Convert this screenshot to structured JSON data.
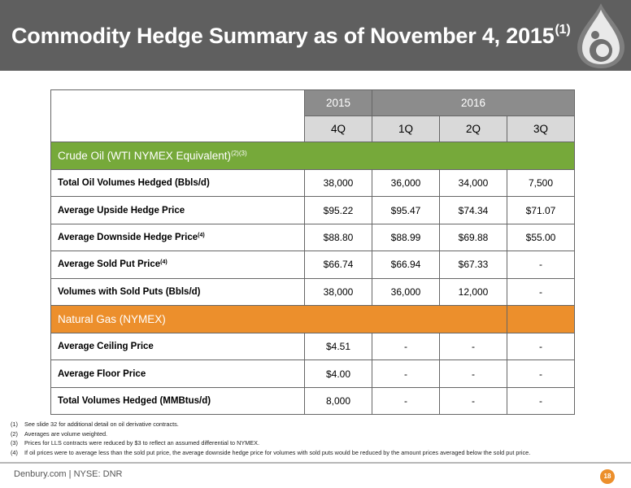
{
  "header": {
    "title": "Commodity Hedge Summary as of November 4, 2015",
    "title_sup": "(1)",
    "bg_color": "#5f5f5f",
    "logo_icon": "oil-drop-logo-icon"
  },
  "table": {
    "years": [
      "2015",
      "2016"
    ],
    "quarters": [
      "4Q",
      "1Q",
      "2Q",
      "3Q"
    ],
    "oil_section": {
      "label": "Crude Oil (WTI NYMEX Equivalent)",
      "sup": "(2)(3)",
      "color": "#76a93a"
    },
    "oil_rows": [
      {
        "label": "Total Oil Volumes Hedged (Bbls/d)",
        "sup": "",
        "values": [
          "38,000",
          "36,000",
          "34,000",
          "7,500"
        ]
      },
      {
        "label": "Average Upside Hedge Price",
        "sup": "",
        "values": [
          "$95.22",
          "$95.47",
          "$74.34",
          "$71.07"
        ]
      },
      {
        "label": "Average Downside Hedge Price",
        "sup": "(4)",
        "values": [
          "$88.80",
          "$88.99",
          "$69.88",
          "$55.00"
        ]
      },
      {
        "label": "Average Sold Put Price",
        "sup": "(4)",
        "values": [
          "$66.74",
          "$66.94",
          "$67.33",
          "-"
        ]
      },
      {
        "label": "Volumes with Sold Puts (Bbls/d)",
        "sup": "",
        "values": [
          "38,000",
          "36,000",
          "12,000",
          "-"
        ]
      }
    ],
    "gas_section": {
      "label": "Natural Gas (NYMEX)",
      "color": "#ec8f2c"
    },
    "gas_rows": [
      {
        "label": "Average Ceiling Price",
        "values": [
          "$4.51",
          "-",
          "-",
          "-"
        ]
      },
      {
        "label": "Average Floor Price",
        "values": [
          "$4.00",
          "-",
          "-",
          "-"
        ]
      },
      {
        "label": "Total Volumes Hedged (MMBtus/d)",
        "values": [
          "8,000",
          "-",
          "-",
          "-"
        ]
      }
    ]
  },
  "footnotes": [
    {
      "num": "(1)",
      "text": "See slide 32 for additional detail on oil derivative contracts."
    },
    {
      "num": "(2)",
      "text": "Averages are volume weighted."
    },
    {
      "num": "(3)",
      "text": "Prices for LLS contracts were reduced by $3 to reflect an assumed differential to NYMEX."
    },
    {
      "num": "(4)",
      "text": "If oil prices were to average less than the sold put price, the average downside hedge price for volumes with sold puts would be reduced by the amount prices averaged below the sold put price."
    }
  ],
  "footer": {
    "text": "Denbury.com | NYSE: DNR",
    "page_number": "18"
  }
}
